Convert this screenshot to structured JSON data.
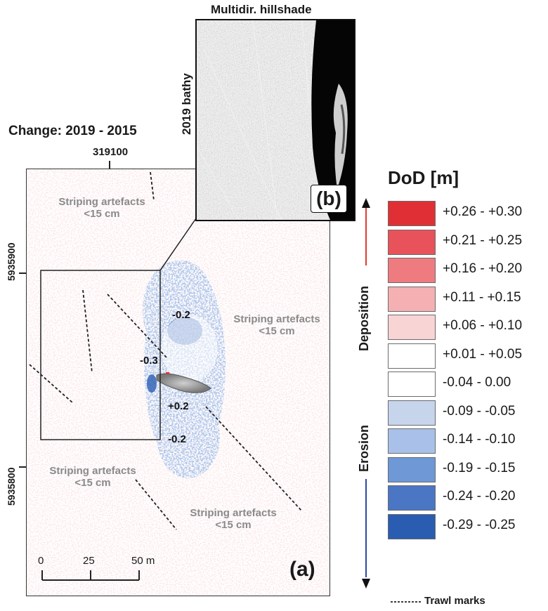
{
  "title": "Change: 2019 - 2015",
  "easting_label": "319100",
  "northing_labels": [
    "5935900",
    "5935800"
  ],
  "inset": {
    "title": "Multidir. hillshade",
    "side_label": "2019 bathy",
    "panel_label": "(b)"
  },
  "panel_label": "(a)",
  "annotations": {
    "striping_1": [
      "Striping artefacts",
      "<15 cm"
    ],
    "striping_2": [
      "Striping artefacts",
      "<15 cm"
    ],
    "striping_3": [
      "Striping artefacts",
      "<15 cm"
    ],
    "striping_4": [
      "Striping artefacts",
      "<15 cm"
    ],
    "val_minus02_top": "-0.2",
    "val_minus03": "-0.3",
    "val_plus02": "+0.2",
    "val_minus02_bottom": "-0.2"
  },
  "scale_bar": {
    "ticks": [
      "0",
      "25",
      "50 m"
    ]
  },
  "legend": {
    "title": "DoD [m]",
    "deposition_label": "Deposition",
    "erosion_label": "Erosion",
    "classes": [
      {
        "label": "+0.26 - +0.30",
        "color": "#e03035"
      },
      {
        "label": "+0.21 - +0.25",
        "color": "#e8525a"
      },
      {
        "label": "+0.16 - +0.20",
        "color": "#ee7b80"
      },
      {
        "label": "+0.11 - +0.15",
        "color": "#f4b0b3"
      },
      {
        "label": "+0.06 - +0.10",
        "color": "#f8d4d5"
      },
      {
        "label": "+0.01 - +0.05",
        "color": "#ffffff"
      },
      {
        "label": "-0.04 - 0.00",
        "color": "#ffffff"
      },
      {
        "label": "-0.09 - -0.05",
        "color": "#c6d4ec"
      },
      {
        "label": "-0.14 - -0.10",
        "color": "#a9c1e8"
      },
      {
        "label": "-0.19 - -0.15",
        "color": "#6e98d6"
      },
      {
        "label": "-0.24 - -0.20",
        "color": "#4a76c4"
      },
      {
        "label": "-0.29 - -0.25",
        "color": "#2a5cb2"
      }
    ],
    "trawl_label": "Trawl marks",
    "deposition_arrow_color": "#e03a2e",
    "erosion_arrow_color": "#2c4aa0"
  }
}
